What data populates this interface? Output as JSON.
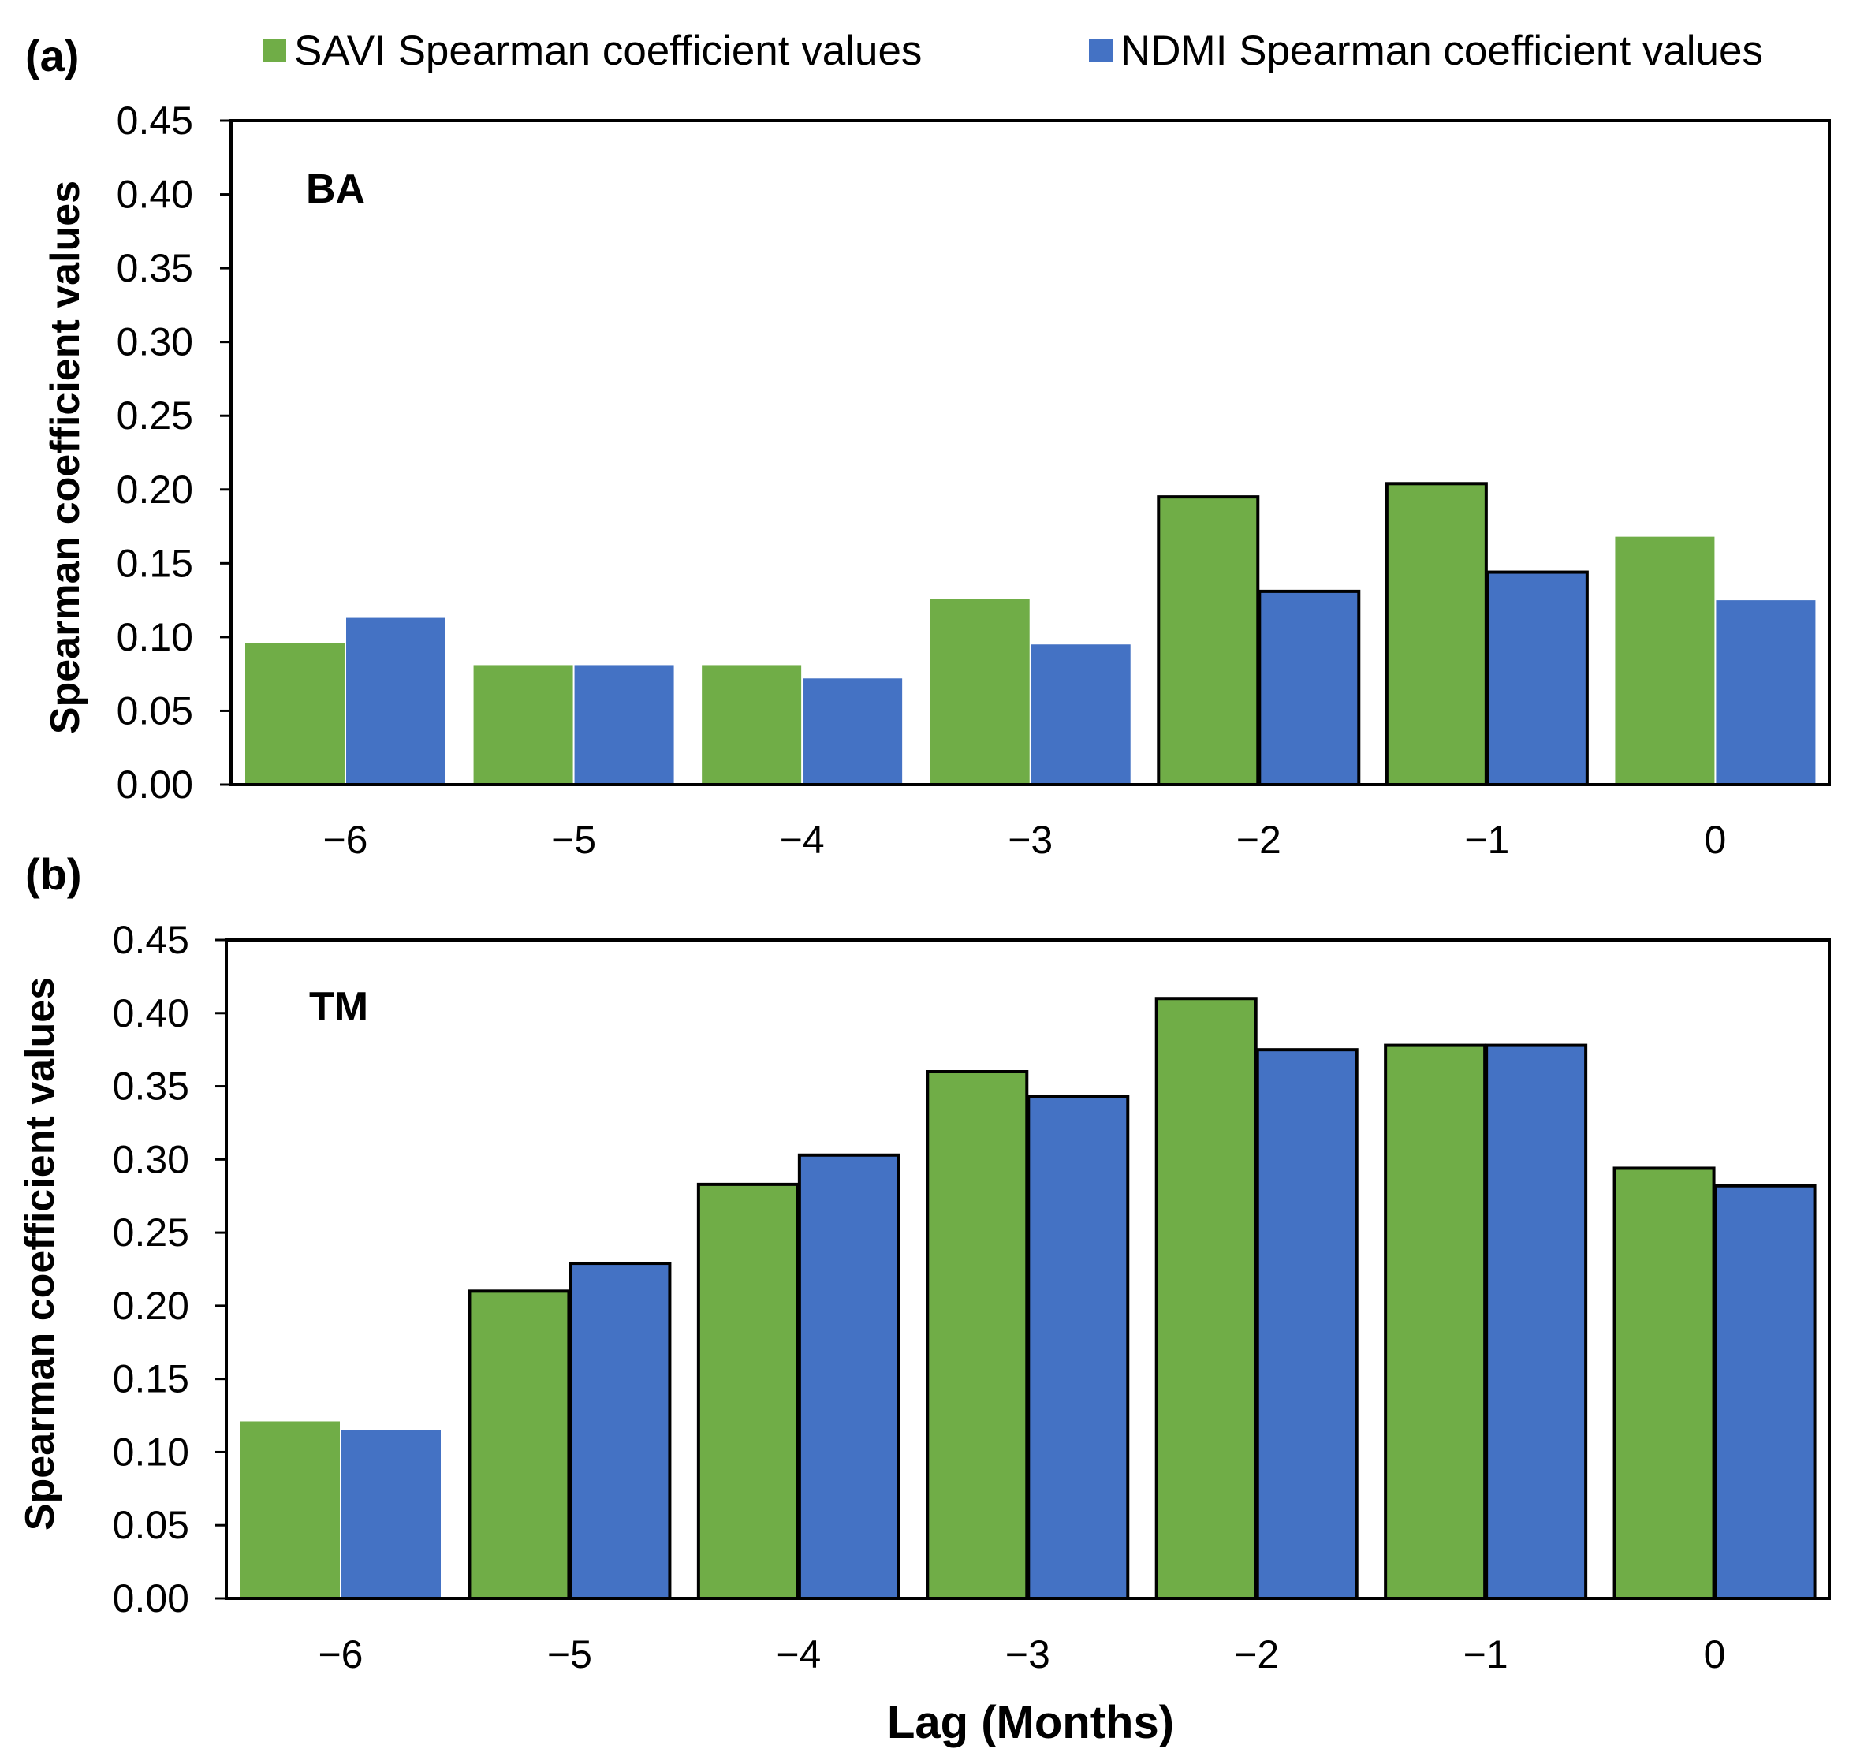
{
  "colors": {
    "savi": "#70AD47",
    "ndmi": "#4472C4",
    "outline": "#000000"
  },
  "legend": {
    "items": [
      {
        "label": "SAVI Spearman coefficient values",
        "color": "#70AD47"
      },
      {
        "label": "NDMI Spearman coefficient values",
        "color": "#4472C4"
      }
    ]
  },
  "chart_data": [
    {
      "type": "bar",
      "tag": "(a)",
      "panel_label": "BA",
      "categories": [
        "−6",
        "−5",
        "−4",
        "−3",
        "−2",
        "−1",
        "0"
      ],
      "series": [
        {
          "name": "SAVI Spearman coefficient values",
          "values": [
            0.096,
            0.081,
            0.081,
            0.126,
            0.195,
            0.204,
            0.168
          ]
        },
        {
          "name": "NDMI Spearman coefficient values",
          "values": [
            0.113,
            0.081,
            0.072,
            0.095,
            0.131,
            0.144,
            0.125
          ]
        }
      ],
      "outlined_categories": [
        "−2",
        "−1"
      ],
      "ylabel": "Spearman coefficient values",
      "xlabel": "",
      "ylim": [
        0,
        0.45
      ],
      "yticks": [
        "0.00",
        "0.05",
        "0.10",
        "0.15",
        "0.20",
        "0.25",
        "0.30",
        "0.35",
        "0.40",
        "0.45"
      ]
    },
    {
      "type": "bar",
      "tag": "(b)",
      "panel_label": "TM",
      "categories": [
        "−6",
        "−5",
        "−4",
        "−3",
        "−2",
        "−1",
        "0"
      ],
      "series": [
        {
          "name": "SAVI Spearman coefficient values",
          "values": [
            0.121,
            0.21,
            0.283,
            0.36,
            0.41,
            0.378,
            0.294
          ]
        },
        {
          "name": "NDMI Spearman coefficient values",
          "values": [
            0.115,
            0.229,
            0.303,
            0.343,
            0.375,
            0.378,
            0.282
          ]
        }
      ],
      "outlined_categories": [
        "−5",
        "−4",
        "−3",
        "−2",
        "−1",
        "0"
      ],
      "ylabel": "Spearman coefficient values",
      "xlabel": "Lag (Months)",
      "ylim": [
        0,
        0.45
      ],
      "yticks": [
        "0.00",
        "0.05",
        "0.10",
        "0.15",
        "0.20",
        "0.25",
        "0.30",
        "0.35",
        "0.40",
        "0.45"
      ]
    }
  ]
}
